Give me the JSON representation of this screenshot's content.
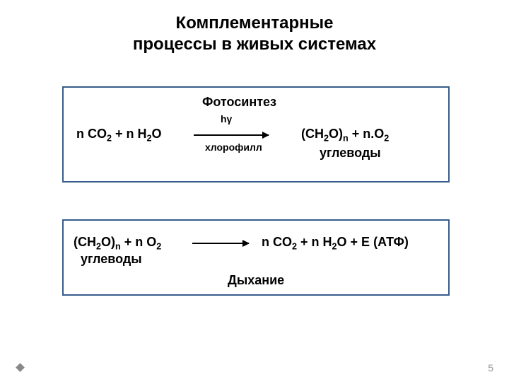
{
  "title_line1": "Комплементарные",
  "title_line2": "процессы в живых системах",
  "box1": {
    "header": "Фотосинтез",
    "left_formula_html": "n CO<sub>2</sub>  +  n H<sub>2</sub>O",
    "arrow_top": "hγ",
    "arrow_bottom": "хлорофилл",
    "right_formula_html": "(CH<sub>2</sub>O)<sub>n</sub> + n.O<sub>2</sub>",
    "right_sub": "углеводы"
  },
  "box2": {
    "left_formula_html": "(CH<sub>2</sub>O)<sub>n</sub> + n O<sub>2</sub>",
    "left_sub": "углеводы",
    "right_formula_html": "n  CO<sub>2</sub>  +  n H<sub>2</sub>O  +  E (АТФ)",
    "footer": "Дыхание"
  },
  "page_number": "5"
}
